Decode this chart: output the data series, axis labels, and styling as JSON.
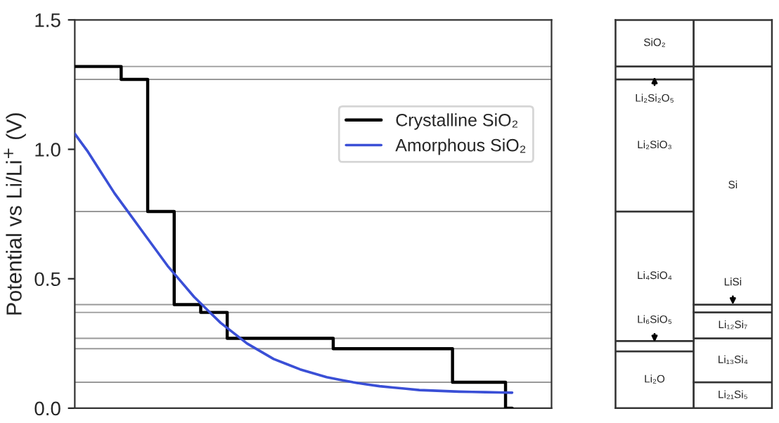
{
  "chart_data": [
    {
      "type": "line",
      "ylabel": "Potential vs Li/Li$^{+}$ (V)",
      "categories": [
        null,
        null,
        null,
        null,
        null,
        null,
        null,
        null,
        null,
        null,
        null,
        null,
        null,
        null,
        null,
        null,
        null,
        null,
        null,
        null,
        null,
        null,
        null,
        null,
        null,
        null,
        null,
        null,
        null,
        null,
        null,
        null,
        null,
        null
      ],
      "series": [
        {
          "name": "Crystalline SiO₂",
          "type": "step",
          "color": "#000000",
          "values": [
            1.32,
            1.32,
            1.32,
            1.32,
            1.27,
            1.27,
            0.76,
            0.76,
            0.4,
            0.4,
            0.37,
            0.37,
            0.27,
            0.27,
            0.27,
            0.27,
            0.27,
            0.27,
            0.27,
            0.27,
            0.23,
            0.23,
            0.23,
            0.23,
            0.23,
            0.23,
            0.23,
            0.23,
            0.23,
            0.1,
            0.1,
            0.1,
            0.1,
            0
          ]
        },
        {
          "name": "Amorphous SiO₂",
          "type": "line",
          "color": "#3a4fd6",
          "values": [
            1.06,
            0.99,
            0.91,
            0.83,
            0.76,
            0.69,
            0.62,
            0.55,
            0.49,
            0.43,
            0.38,
            0.33,
            0.29,
            0.25,
            0.22,
            0.19,
            0.17,
            0.15,
            0.135,
            0.12,
            0.11,
            0.1,
            0.092,
            0.085,
            0.08,
            0.075,
            0.07,
            0.068,
            0.066,
            0.064,
            0.063,
            0.062,
            0.061,
            0.06
          ]
        }
      ],
      "ylim": [
        0,
        1.5
      ],
      "yticks": [
        {
          "value": 0,
          "label": "0.0"
        },
        0.5,
        {
          "value": 1,
          "label": "1.0"
        },
        1.5
      ],
      "tick_labels": "y",
      "legend": "top right",
      "ref_lines": [
        {
          "axis": "y",
          "value": 1.32,
          "color": "#999999"
        },
        {
          "axis": "y",
          "value": 1.27,
          "color": "#999999"
        },
        {
          "axis": "y",
          "value": 0.76,
          "color": "#999999"
        },
        {
          "axis": "y",
          "value": 0.4,
          "color": "#999999"
        },
        {
          "axis": "y",
          "value": 0.37,
          "color": "#999999"
        },
        {
          "axis": "y",
          "value": 0.27,
          "color": "#999999"
        },
        {
          "axis": "y",
          "value": 0.23,
          "color": "#999999"
        },
        {
          "axis": "y",
          "value": 0.1,
          "color": "#999999"
        }
      ]
    },
    {
      "type": "bar",
      "stacked": true,
      "categories": [
        null,
        null
      ],
      "ylim": [
        0,
        1.5
      ],
      "tick_labels": false,
      "series": [
        {
          "color": "#ffffff",
          "values": [
            0.22,
            0.1
          ],
          "value_labels": [
            "Li₂O",
            "Li₂₁Si₅"
          ]
        },
        {
          "color": "#ffffff",
          "values": [
            0.04,
            0.17
          ],
          "value_labels": [
            "Li₆SiO₅",
            "Li₁₃Si₄"
          ]
        },
        {
          "color": "#ffffff",
          "values": [
            0.5,
            0.1
          ],
          "value_labels": [
            "Li₄SiO₄",
            "Li₁₂Si₇"
          ]
        },
        {
          "color": "#ffffff",
          "values": [
            0.51,
            0.03
          ],
          "value_labels": [
            "Li₂SiO₃",
            "LiSi"
          ]
        },
        {
          "color": "#ffffff",
          "values": [
            0.05,
            0.92
          ],
          "value_labels": [
            "Li₂Si₂O₅",
            "Si"
          ]
        },
        {
          "color": "#ffffff",
          "values": [
            0.18,
            0.18
          ],
          "value_labels": [
            "SiO₂",
            null
          ]
        }
      ]
    }
  ]
}
